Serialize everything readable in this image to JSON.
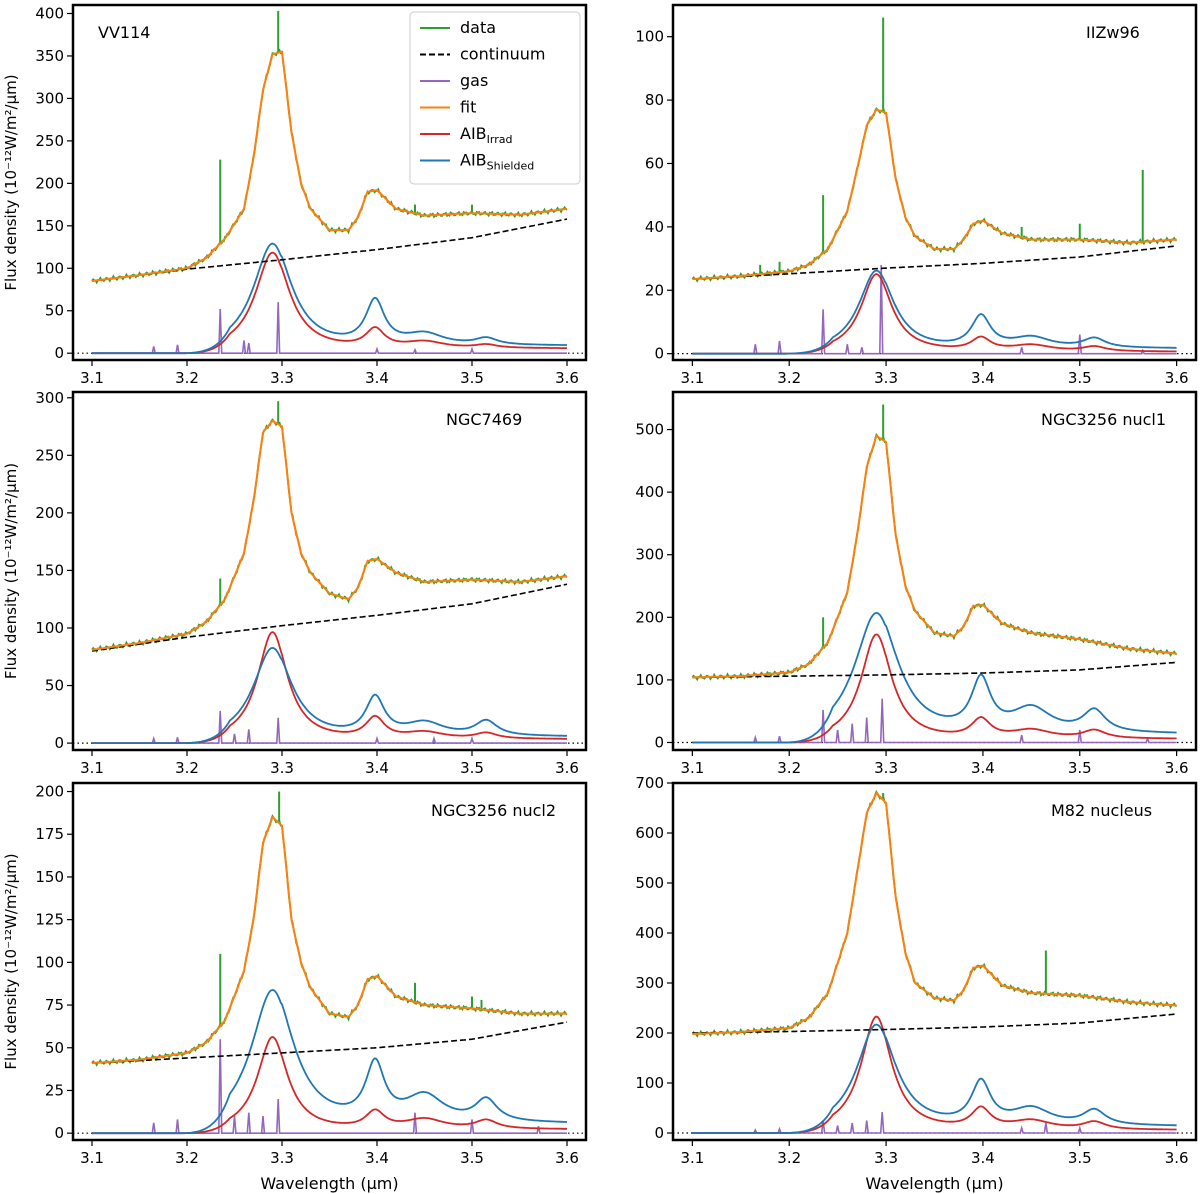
{
  "figure": {
    "ylabel": "Flux density (10⁻¹²W/m²/μm)",
    "xlabel": "Wavelength (μm)",
    "legend_position": "upper-right of first panel",
    "colors": {
      "data": "#2ca02c",
      "continuum": "#000000",
      "gas": "#9467bd",
      "fit": "#ff7f0e",
      "irrad": "#d62728",
      "shielded": "#1f77b4"
    }
  },
  "legend": [
    {
      "key": "data",
      "label": "data",
      "style": "solid"
    },
    {
      "key": "continuum",
      "label": "continuum",
      "style": "dashed"
    },
    {
      "key": "gas",
      "label": "gas",
      "style": "solid"
    },
    {
      "key": "fit",
      "label": "fit",
      "style": "solid"
    },
    {
      "key": "irrad",
      "label": "AIB",
      "sub": "Irrad",
      "style": "solid"
    },
    {
      "key": "shielded",
      "label": "AIB",
      "sub": "Shielded",
      "style": "solid"
    }
  ],
  "chart_data": [
    {
      "type": "line",
      "title": "VV114",
      "xlim": [
        3.08,
        3.62
      ],
      "ylim": [
        -8,
        410
      ],
      "xticks": [
        3.1,
        3.2,
        3.3,
        3.4,
        3.5,
        3.6
      ],
      "yticks": [
        0,
        50,
        100,
        150,
        200,
        250,
        300,
        350,
        400
      ],
      "continuum": {
        "x": [
          3.1,
          3.2,
          3.3,
          3.4,
          3.5,
          3.6
        ],
        "y": [
          85,
          99,
          110,
          122,
          136,
          158
        ]
      },
      "shielded": {
        "peak": 128,
        "w33": 0.045,
        "p34": 52,
        "p345": 14,
        "p352": 8,
        "tail": 8
      },
      "irrad": {
        "peak": 118,
        "w33": 0.04,
        "p34": 22,
        "p345": 8,
        "p352": 4,
        "tail": 5
      },
      "fit": {
        "x": [
          3.1,
          3.15,
          3.2,
          3.22,
          3.24,
          3.26,
          3.27,
          3.28,
          3.29,
          3.3,
          3.31,
          3.32,
          3.33,
          3.35,
          3.37,
          3.38,
          3.39,
          3.4,
          3.42,
          3.45,
          3.5,
          3.55,
          3.6
        ],
        "y": [
          85,
          92,
          100,
          112,
          135,
          170,
          230,
          310,
          352,
          355,
          260,
          200,
          170,
          145,
          145,
          160,
          190,
          192,
          170,
          162,
          165,
          163,
          170
        ]
      },
      "gas_lines": [
        [
          3.165,
          8
        ],
        [
          3.19,
          10
        ],
        [
          3.235,
          52
        ],
        [
          3.26,
          15
        ],
        [
          3.265,
          12
        ],
        [
          3.296,
          60
        ],
        [
          3.4,
          5
        ],
        [
          3.44,
          4
        ],
        [
          3.5,
          5
        ]
      ],
      "data_spikes": [
        [
          3.235,
          228
        ],
        [
          3.296,
          403
        ],
        [
          3.44,
          175
        ],
        [
          3.5,
          175
        ]
      ]
    },
    {
      "type": "line",
      "title": "IIZw96",
      "xlim": [
        3.08,
        3.62
      ],
      "ylim": [
        -2,
        110
      ],
      "xticks": [
        3.1,
        3.2,
        3.3,
        3.4,
        3.5,
        3.6
      ],
      "yticks": [
        0,
        20,
        40,
        60,
        80,
        100
      ],
      "continuum": {
        "x": [
          3.1,
          3.2,
          3.3,
          3.4,
          3.5,
          3.6
        ],
        "y": [
          23.5,
          25.2,
          27,
          28.5,
          30.5,
          34
        ]
      },
      "shielded": {
        "peak": 26,
        "w33": 0.04,
        "p34": 10,
        "p345": 3.5,
        "p352": 3,
        "tail": 1.5
      },
      "irrad": {
        "peak": 25,
        "w33": 0.035,
        "p34": 4,
        "p345": 2,
        "p352": 1.5,
        "tail": 0.5
      },
      "fit": {
        "x": [
          3.1,
          3.15,
          3.2,
          3.22,
          3.24,
          3.26,
          3.27,
          3.28,
          3.29,
          3.3,
          3.31,
          3.32,
          3.33,
          3.35,
          3.37,
          3.38,
          3.39,
          3.4,
          3.42,
          3.45,
          3.5,
          3.55,
          3.6
        ],
        "y": [
          23.5,
          24.5,
          26,
          28,
          33,
          45,
          58,
          72,
          77,
          76,
          55,
          43,
          37,
          33,
          33,
          36,
          41,
          42,
          38,
          36,
          36,
          35,
          36
        ]
      },
      "gas_lines": [
        [
          3.165,
          3
        ],
        [
          3.19,
          4
        ],
        [
          3.235,
          14
        ],
        [
          3.26,
          3
        ],
        [
          3.275,
          2
        ],
        [
          3.295,
          28
        ],
        [
          3.44,
          2
        ],
        [
          3.5,
          6
        ],
        [
          3.565,
          1
        ]
      ],
      "data_spikes": [
        [
          3.235,
          50
        ],
        [
          3.297,
          106
        ],
        [
          3.44,
          40
        ],
        [
          3.5,
          41
        ],
        [
          3.565,
          58
        ],
        [
          3.17,
          28
        ],
        [
          3.19,
          29
        ]
      ]
    },
    {
      "type": "line",
      "title": "NGC7469",
      "xlim": [
        3.08,
        3.62
      ],
      "ylim": [
        -6,
        305
      ],
      "xticks": [
        3.1,
        3.2,
        3.3,
        3.4,
        3.5,
        3.6
      ],
      "yticks": [
        0,
        50,
        100,
        150,
        200,
        250,
        300
      ],
      "continuum": {
        "x": [
          3.1,
          3.2,
          3.3,
          3.4,
          3.5,
          3.6
        ],
        "y": [
          80,
          92,
          102,
          111,
          121,
          138
        ]
      },
      "shielded": {
        "peak": 82,
        "w33": 0.045,
        "p34": 33,
        "p345": 12,
        "p352": 13,
        "tail": 5
      },
      "irrad": {
        "peak": 96,
        "w33": 0.035,
        "p34": 18,
        "p345": 6,
        "p352": 5,
        "tail": 3
      },
      "fit": {
        "x": [
          3.1,
          3.15,
          3.2,
          3.22,
          3.24,
          3.26,
          3.27,
          3.28,
          3.29,
          3.3,
          3.31,
          3.32,
          3.33,
          3.35,
          3.37,
          3.38,
          3.39,
          3.4,
          3.42,
          3.45,
          3.5,
          3.55,
          3.6
        ],
        "y": [
          81,
          87,
          95,
          105,
          125,
          165,
          210,
          270,
          280,
          275,
          200,
          165,
          148,
          130,
          125,
          135,
          158,
          160,
          148,
          140,
          142,
          140,
          145
        ]
      },
      "gas_lines": [
        [
          3.165,
          4
        ],
        [
          3.19,
          5
        ],
        [
          3.235,
          28
        ],
        [
          3.25,
          8
        ],
        [
          3.265,
          12
        ],
        [
          3.296,
          22
        ],
        [
          3.4,
          4
        ],
        [
          3.46,
          4
        ],
        [
          3.5,
          4
        ]
      ],
      "data_spikes": [
        [
          3.235,
          143
        ],
        [
          3.296,
          297
        ]
      ]
    },
    {
      "type": "line",
      "title": "NGC3256 nucl1",
      "xlim": [
        3.08,
        3.62
      ],
      "ylim": [
        -12,
        560
      ],
      "xticks": [
        3.1,
        3.2,
        3.3,
        3.4,
        3.5,
        3.6
      ],
      "yticks": [
        0,
        100,
        200,
        300,
        400,
        500
      ],
      "continuum": {
        "x": [
          3.1,
          3.2,
          3.3,
          3.4,
          3.5,
          3.6
        ],
        "y": [
          104,
          106,
          108,
          111,
          116,
          128
        ]
      },
      "shielded": {
        "peak": 205,
        "w33": 0.05,
        "p34": 82,
        "p345": 40,
        "p352": 35,
        "tail": 12
      },
      "irrad": {
        "peak": 172,
        "w33": 0.035,
        "p34": 30,
        "p345": 14,
        "p352": 13,
        "tail": 5
      },
      "fit": {
        "x": [
          3.1,
          3.15,
          3.2,
          3.22,
          3.24,
          3.26,
          3.27,
          3.28,
          3.29,
          3.3,
          3.31,
          3.32,
          3.33,
          3.35,
          3.37,
          3.38,
          3.39,
          3.4,
          3.42,
          3.45,
          3.5,
          3.55,
          3.6
        ],
        "y": [
          104,
          106,
          112,
          125,
          160,
          240,
          330,
          440,
          490,
          480,
          330,
          250,
          210,
          175,
          170,
          185,
          218,
          220,
          190,
          175,
          165,
          150,
          142
        ]
      },
      "gas_lines": [
        [
          3.165,
          8
        ],
        [
          3.19,
          10
        ],
        [
          3.235,
          52
        ],
        [
          3.25,
          20
        ],
        [
          3.265,
          30
        ],
        [
          3.28,
          40
        ],
        [
          3.296,
          70
        ],
        [
          3.44,
          12
        ],
        [
          3.5,
          20
        ],
        [
          3.57,
          6
        ]
      ],
      "data_spikes": [
        [
          3.235,
          200
        ],
        [
          3.297,
          540
        ]
      ]
    },
    {
      "type": "line",
      "title": "NGC3256 nucl2",
      "xlim": [
        3.08,
        3.62
      ],
      "ylim": [
        -4,
        205
      ],
      "xticks": [
        3.1,
        3.2,
        3.3,
        3.4,
        3.5,
        3.6
      ],
      "yticks": [
        0,
        25,
        50,
        75,
        100,
        125,
        150,
        175,
        200
      ],
      "continuum": {
        "x": [
          3.1,
          3.2,
          3.3,
          3.4,
          3.5,
          3.6
        ],
        "y": [
          41,
          44,
          47,
          50,
          55,
          65
        ]
      },
      "shielded": {
        "peak": 83,
        "w33": 0.05,
        "p34": 33,
        "p345": 16,
        "p352": 13,
        "tail": 5
      },
      "irrad": {
        "peak": 56,
        "w33": 0.035,
        "p34": 10,
        "p345": 6,
        "p352": 5,
        "tail": 2
      },
      "fit": {
        "x": [
          3.1,
          3.15,
          3.2,
          3.22,
          3.24,
          3.26,
          3.27,
          3.28,
          3.29,
          3.3,
          3.31,
          3.32,
          3.33,
          3.35,
          3.37,
          3.38,
          3.39,
          3.4,
          3.42,
          3.45,
          3.5,
          3.55,
          3.6
        ],
        "y": [
          41,
          43,
          47,
          53,
          66,
          95,
          125,
          170,
          185,
          180,
          125,
          100,
          85,
          70,
          68,
          75,
          90,
          92,
          80,
          75,
          73,
          70,
          70
        ]
      },
      "gas_lines": [
        [
          3.165,
          6
        ],
        [
          3.19,
          8
        ],
        [
          3.235,
          55
        ],
        [
          3.25,
          10
        ],
        [
          3.265,
          12
        ],
        [
          3.28,
          10
        ],
        [
          3.296,
          20
        ],
        [
          3.44,
          12
        ],
        [
          3.5,
          8
        ],
        [
          3.57,
          4
        ]
      ],
      "data_spikes": [
        [
          3.235,
          105
        ],
        [
          3.297,
          200
        ],
        [
          3.44,
          88
        ],
        [
          3.5,
          80
        ],
        [
          3.51,
          78
        ]
      ]
    },
    {
      "type": "line",
      "title": "M82 nucleus",
      "xlim": [
        3.08,
        3.62
      ],
      "ylim": [
        -14,
        700
      ],
      "xticks": [
        3.1,
        3.2,
        3.3,
        3.4,
        3.5,
        3.6
      ],
      "yticks": [
        0,
        100,
        200,
        300,
        400,
        500,
        600,
        700
      ],
      "continuum": {
        "x": [
          3.1,
          3.2,
          3.3,
          3.4,
          3.5,
          3.6
        ],
        "y": [
          200,
          203,
          207,
          212,
          220,
          238
        ]
      },
      "shielded": {
        "peak": 215,
        "w33": 0.045,
        "p34": 85,
        "p345": 35,
        "p352": 30,
        "tail": 12
      },
      "irrad": {
        "peak": 232,
        "w33": 0.035,
        "p34": 40,
        "p345": 18,
        "p352": 15,
        "tail": 5
      },
      "fit": {
        "x": [
          3.1,
          3.15,
          3.2,
          3.22,
          3.24,
          3.26,
          3.27,
          3.28,
          3.29,
          3.3,
          3.31,
          3.32,
          3.33,
          3.35,
          3.37,
          3.38,
          3.39,
          3.4,
          3.42,
          3.45,
          3.5,
          3.55,
          3.6
        ],
        "y": [
          198,
          202,
          210,
          230,
          280,
          400,
          520,
          640,
          680,
          660,
          470,
          360,
          300,
          270,
          265,
          285,
          330,
          335,
          295,
          280,
          275,
          262,
          255
        ]
      },
      "gas_lines": [
        [
          3.165,
          6
        ],
        [
          3.19,
          8
        ],
        [
          3.235,
          25
        ],
        [
          3.25,
          15
        ],
        [
          3.265,
          20
        ],
        [
          3.28,
          25
        ],
        [
          3.296,
          42
        ],
        [
          3.44,
          10
        ],
        [
          3.465,
          20
        ],
        [
          3.5,
          10
        ]
      ],
      "data_spikes": [
        [
          3.297,
          680
        ],
        [
          3.465,
          365
        ]
      ]
    }
  ]
}
